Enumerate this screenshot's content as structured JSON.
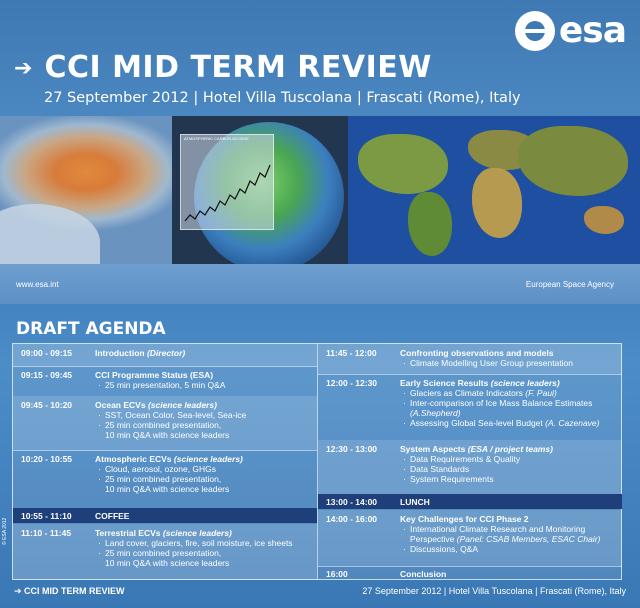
{
  "header": {
    "logo_text": "esa",
    "title": "CCI MID TERM REVIEW",
    "subtitle": "27 September 2012 | Hotel Villa Tuscolana | Frascati (Rome), Italy",
    "image_left_caption": "www.esa.int",
    "image_right_caption": "European Space Agency",
    "chart_caption": "ATMOSPHERIC CARBON DIOXIDE"
  },
  "agenda": {
    "title": "DRAFT AGENDA",
    "left": [
      {
        "time": "09:00 - 09:15",
        "head": "Introduction",
        "lead": "(Director)",
        "subs": []
      },
      {
        "time": "09:15 - 09:45",
        "head": "CCI Programme Status (ESA)",
        "lead": "",
        "subs": [
          "25 min presentation, 5 min Q&A"
        ]
      },
      {
        "time": "09:45 - 10:20",
        "head": "Ocean ECVs",
        "lead": "(science leaders)",
        "subs": [
          "SST, Ocean Color, Sea-level, Sea-ice",
          "25 min combined presentation,",
          "10 min Q&A with science leaders"
        ]
      },
      {
        "time": "10:20 - 10:55",
        "head": "Atmospheric ECVs",
        "lead": "(science leaders)",
        "subs": [
          "Cloud, aerosol, ozone, GHGs",
          "25 min combined presentation,",
          "10 min Q&A with science leaders"
        ]
      },
      {
        "time": "10:55 - 11:10",
        "head": "COFFEE",
        "lead": "",
        "subs": []
      },
      {
        "time": "11:10 - 11:45",
        "head": "Terrestrial ECVs",
        "lead": "(science leaders)",
        "subs": [
          "Land cover, glaciers, fire, soil moisture, ice sheets",
          "25 min combined presentation,",
          "10 min Q&A with science leaders"
        ]
      }
    ],
    "right": [
      {
        "time": "11:45 - 12:00",
        "head": "Confronting observations and models",
        "lead": "",
        "subs": [
          "Climate Modelling User Group presentation"
        ]
      },
      {
        "time": "12:00 - 12:30",
        "head": "Early Science Results",
        "lead": "(science leaders)",
        "subs": [
          "Glaciers as Climate Indicators",
          "Inter-comparison of Ice Mass Balance Estimates",
          "(A.Shepherd)",
          "Assessing Global Sea-level Budget"
        ],
        "sub_leads": [
          "(F. Paul)",
          "",
          "",
          "(A. Cazenave)"
        ]
      },
      {
        "time": "12:30 - 13:00",
        "head": "System Aspects",
        "lead": "(ESA / project teams)",
        "subs": [
          "Data Requirements & Quality",
          "Data Standards",
          "System Requirements"
        ]
      },
      {
        "time": "13:00 - 14:00",
        "head": "LUNCH",
        "lead": "",
        "subs": []
      },
      {
        "time": "14:00 - 16:00",
        "head": "Key Challenges for CCI Phase 2",
        "lead": "",
        "subs": [
          "International Climate Research and Monitoring",
          "Perspective",
          "Discussions, Q&A"
        ],
        "sub_leads": [
          "",
          "(Panel: CSAB Members, ESAC Chair)",
          ""
        ]
      },
      {
        "time": "16:00",
        "head": "Conclusion",
        "lead": "",
        "subs": []
      }
    ]
  },
  "footer": {
    "left": "CCI MID TERM REVIEW",
    "right": "27 September 2012 | Hotel Villa Tuscolana | Frascati (Rome), Italy",
    "copyright": "© ESA 2012"
  }
}
